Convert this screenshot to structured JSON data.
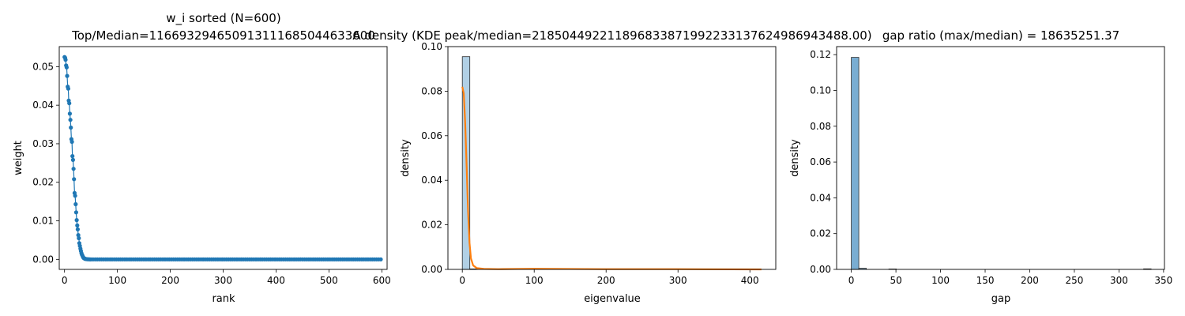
{
  "chart_data": [
    {
      "type": "scatter",
      "title": "w_i sorted (N=600)",
      "subtitle": "Top/Median=116693294650913111685044633600",
      "xlabel": "rank",
      "ylabel": "weight",
      "xlim": [
        -10,
        610
      ],
      "ylim": [
        -0.0026,
        0.0552
      ],
      "xticks": [
        "0",
        "100",
        "200",
        "300",
        "400",
        "500",
        "600"
      ],
      "yticks": [
        "0.00",
        "0.01",
        "0.02",
        "0.03",
        "0.04",
        "0.05"
      ],
      "color": "#1f77b4",
      "connected": true,
      "description": "Sorted weights decaying from ~0.0525 at rank 0 to ~0 by rank ~50; flat near zero to rank 600",
      "series": [
        {
          "x": [
            0,
            1,
            2,
            3,
            4,
            5,
            6,
            7,
            8,
            9,
            10,
            11,
            12,
            13,
            14,
            15,
            16,
            17,
            18,
            19,
            20,
            21,
            22,
            23,
            24,
            25,
            26,
            27,
            28,
            29,
            30,
            31,
            32,
            33,
            34,
            35,
            36,
            37,
            38,
            39,
            40,
            42,
            44,
            46,
            48,
            50
          ],
          "y": [
            0.0525,
            0.0523,
            0.0518,
            0.0503,
            0.0498,
            0.0476,
            0.0448,
            0.0443,
            0.0412,
            0.0405,
            0.0378,
            0.0362,
            0.0342,
            0.0312,
            0.0305,
            0.0268,
            0.0258,
            0.0235,
            0.0208,
            0.0172,
            0.0165,
            0.0143,
            0.0122,
            0.0102,
            0.0088,
            0.0078,
            0.0063,
            0.0055,
            0.0042,
            0.0035,
            0.0028,
            0.0022,
            0.0016,
            0.0012,
            0.0009,
            0.0006,
            0.0004,
            0.0003,
            0.0002,
            0.00015,
            0.0001,
            6e-05,
            3e-05,
            2e-05,
            1e-05,
            0.0
          ]
        }
      ],
      "tail": {
        "from": 50,
        "to": 600,
        "step": 4,
        "value": 0.0
      }
    },
    {
      "type": "histogram",
      "title": "A density (KDE peak/median=218504492211896833871992233137624986943488.00)",
      "xlabel": "eigenvalue",
      "ylabel": "density",
      "xlim": [
        -20,
        436
      ],
      "ylim": [
        0,
        0.1
      ],
      "xticks": [
        "0",
        "100",
        "200",
        "300",
        "400"
      ],
      "yticks": [
        "0.00",
        "0.02",
        "0.04",
        "0.06",
        "0.08",
        "0.10"
      ],
      "bar_color": "#1f77b4",
      "bar_alpha": 0.35,
      "bins": {
        "start": 0,
        "width": 10.4,
        "count": 40
      },
      "heights": [
        0.0955,
        0.0002,
        0.0,
        0.0,
        0.0,
        0.0,
        0.0,
        0.0,
        0.0,
        0.0,
        0.0,
        0.0,
        0.0,
        0.0,
        0.0,
        0.0,
        0.0,
        0.0,
        0.0,
        0.0,
        0.0,
        0.0,
        0.0,
        0.0,
        0.0,
        0.0,
        0.0,
        0.0,
        0.0,
        0.0,
        0.0,
        0.0,
        0.0,
        0.0,
        0.0,
        0.0,
        0.0,
        0.0,
        0.0,
        0.0
      ],
      "kde_color": "#ff7f0e",
      "kde": {
        "x": [
          0,
          2,
          4,
          6,
          8,
          10,
          12,
          15,
          20,
          30,
          50,
          100,
          200,
          300,
          416
        ],
        "y": [
          0.082,
          0.079,
          0.066,
          0.046,
          0.026,
          0.012,
          0.005,
          0.0018,
          0.0006,
          0.0002,
          0.0001,
          0.0003,
          0.0001,
          0.0001,
          0.0
        ]
      }
    },
    {
      "type": "histogram",
      "title": "gap ratio (max/median) = 18635251.37",
      "xlabel": "gap",
      "ylabel": "density",
      "xlim": [
        -16.5,
        351
      ],
      "ylim": [
        0,
        0.1245
      ],
      "xticks": [
        "0",
        "50",
        "100",
        "150",
        "200",
        "250",
        "300",
        "350"
      ],
      "yticks": [
        "0.00",
        "0.02",
        "0.04",
        "0.06",
        "0.08",
        "0.10",
        "0.12"
      ],
      "bar_color": "#1f77b4",
      "bar_alpha": 0.6,
      "bins": {
        "start": 0,
        "width": 8.4,
        "count": 40
      },
      "heights": [
        0.1185,
        0.0006,
        0.0,
        0.0,
        0.0,
        0.0002,
        0.0,
        0.0,
        0.0,
        0.0,
        0.0,
        0.0,
        0.0,
        0.0,
        0.0,
        0.0,
        0.0,
        0.0,
        0.0,
        0.0,
        0.0,
        0.0,
        0.0,
        0.0,
        0.0,
        0.0,
        0.0,
        0.0,
        0.0,
        0.0,
        0.0,
        0.0,
        0.0,
        0.0,
        0.0,
        0.0,
        0.0,
        0.0,
        0.0,
        0.0003
      ]
    }
  ]
}
